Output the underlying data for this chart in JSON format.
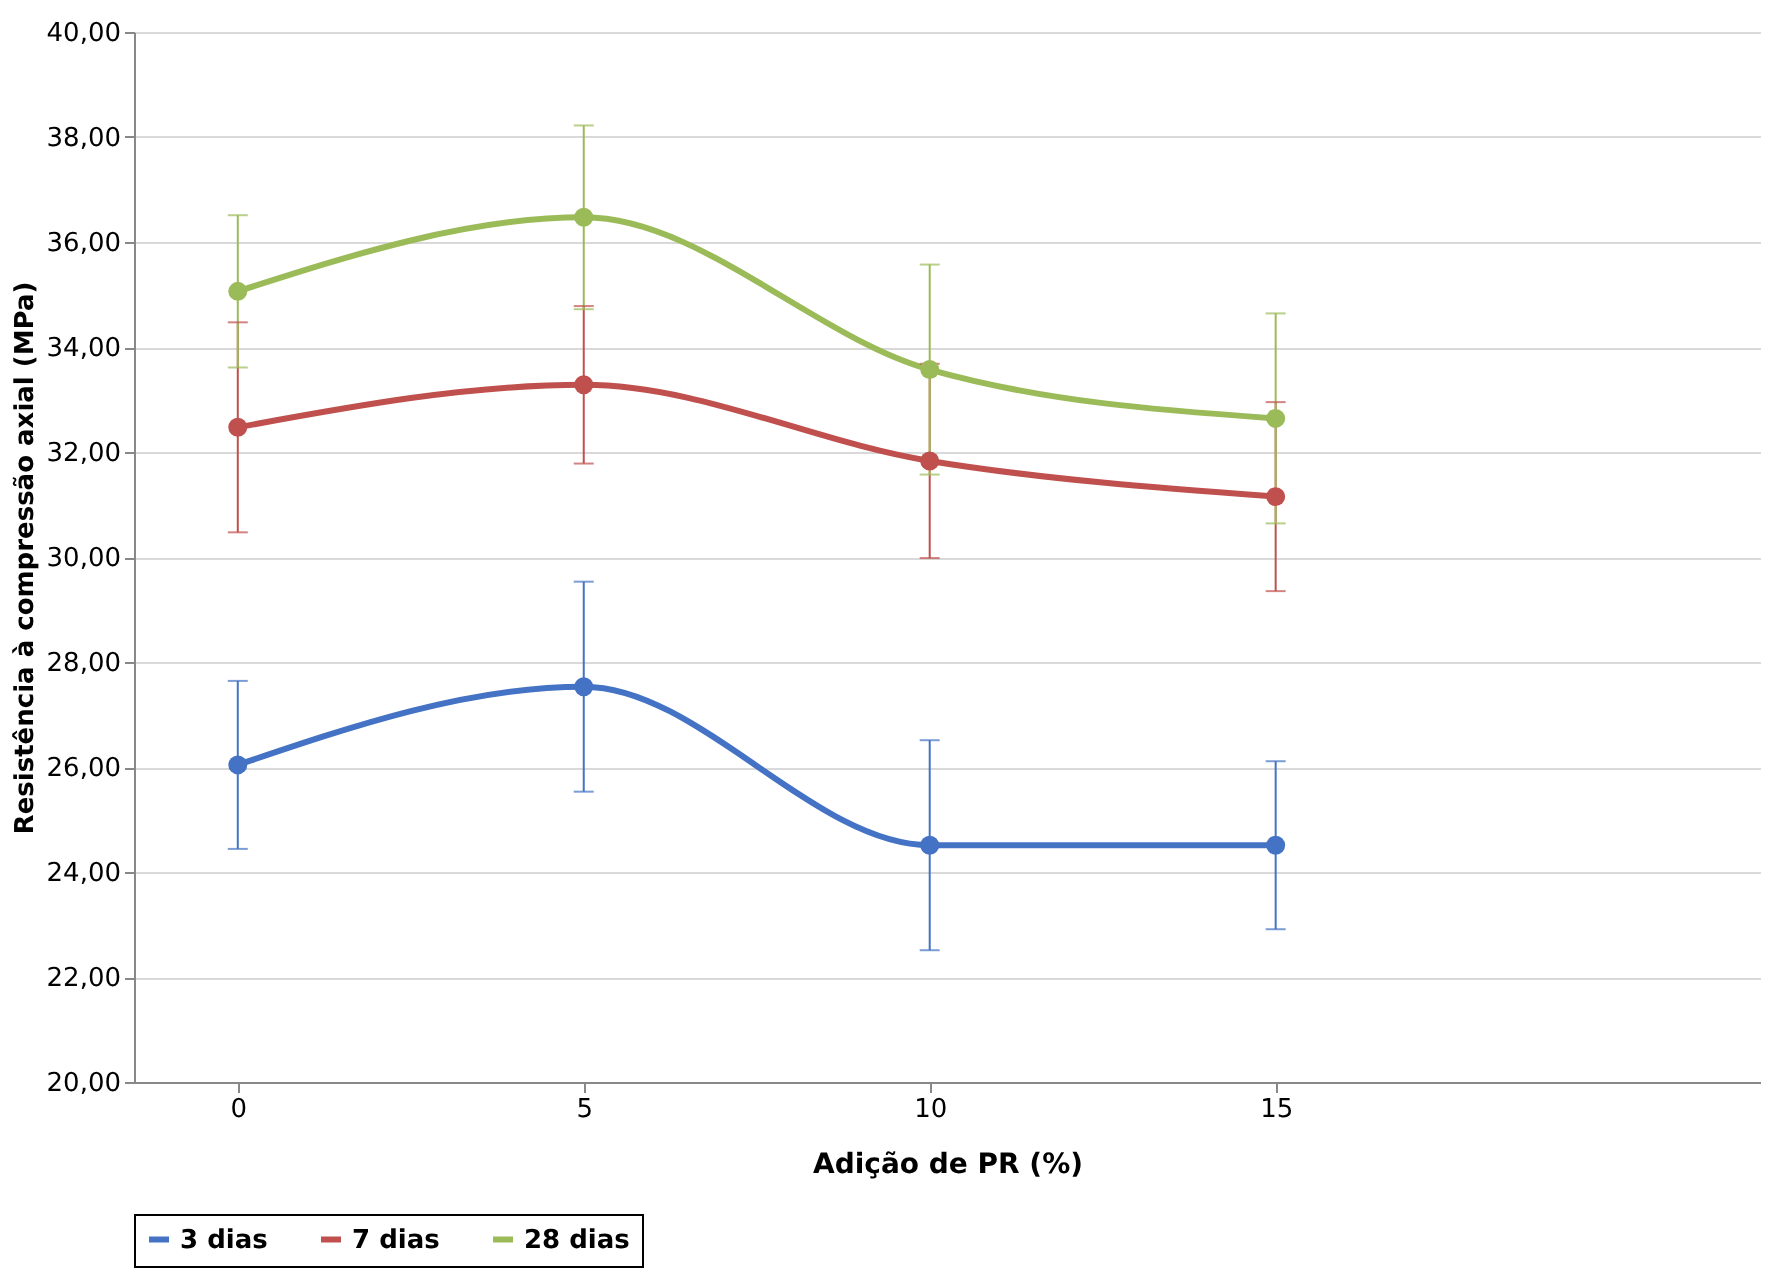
{
  "chart_data": {
    "type": "line",
    "xlabel": "Adição de PR (%)",
    "ylabel": "Resistência à compressão axial (MPa)",
    "x": [
      0,
      5,
      10,
      15
    ],
    "series": [
      {
        "name": "3 dias",
        "color": "#4472c4",
        "values": [
          26.04,
          27.53,
          24.51,
          24.51
        ],
        "errors": [
          1.6,
          2.0,
          2.0,
          1.6
        ]
      },
      {
        "name": "7 dias",
        "color": "#c0504d",
        "values": [
          32.47,
          33.28,
          31.83,
          31.15
        ],
        "errors": [
          2.0,
          1.5,
          1.85,
          1.8
        ]
      },
      {
        "name": "28 dias",
        "color": "#9bbb59",
        "values": [
          35.06,
          36.47,
          33.57,
          32.64
        ],
        "errors": [
          1.45,
          1.75,
          2.0,
          2.0
        ]
      }
    ],
    "xlim": [
      -1.5,
      22
    ],
    "xticks": [
      0,
      5,
      10,
      15
    ],
    "ylim": [
      20,
      40
    ],
    "yticks": [
      {
        "value": 20,
        "label": "20,00"
      },
      {
        "value": 22,
        "label": "22,00"
      },
      {
        "value": 24,
        "label": "24,00"
      },
      {
        "value": 26,
        "label": "26,00"
      },
      {
        "value": 28,
        "label": "28,00"
      },
      {
        "value": 30,
        "label": "30,00"
      },
      {
        "value": 32,
        "label": "32,00"
      },
      {
        "value": 34,
        "label": "34,00"
      },
      {
        "value": 36,
        "label": "36,00"
      },
      {
        "value": 38,
        "label": "38,00"
      },
      {
        "value": 40,
        "label": "40,00"
      }
    ],
    "grid": "y",
    "legend": "bottom",
    "marker": "circle",
    "line_style": "solid"
  }
}
